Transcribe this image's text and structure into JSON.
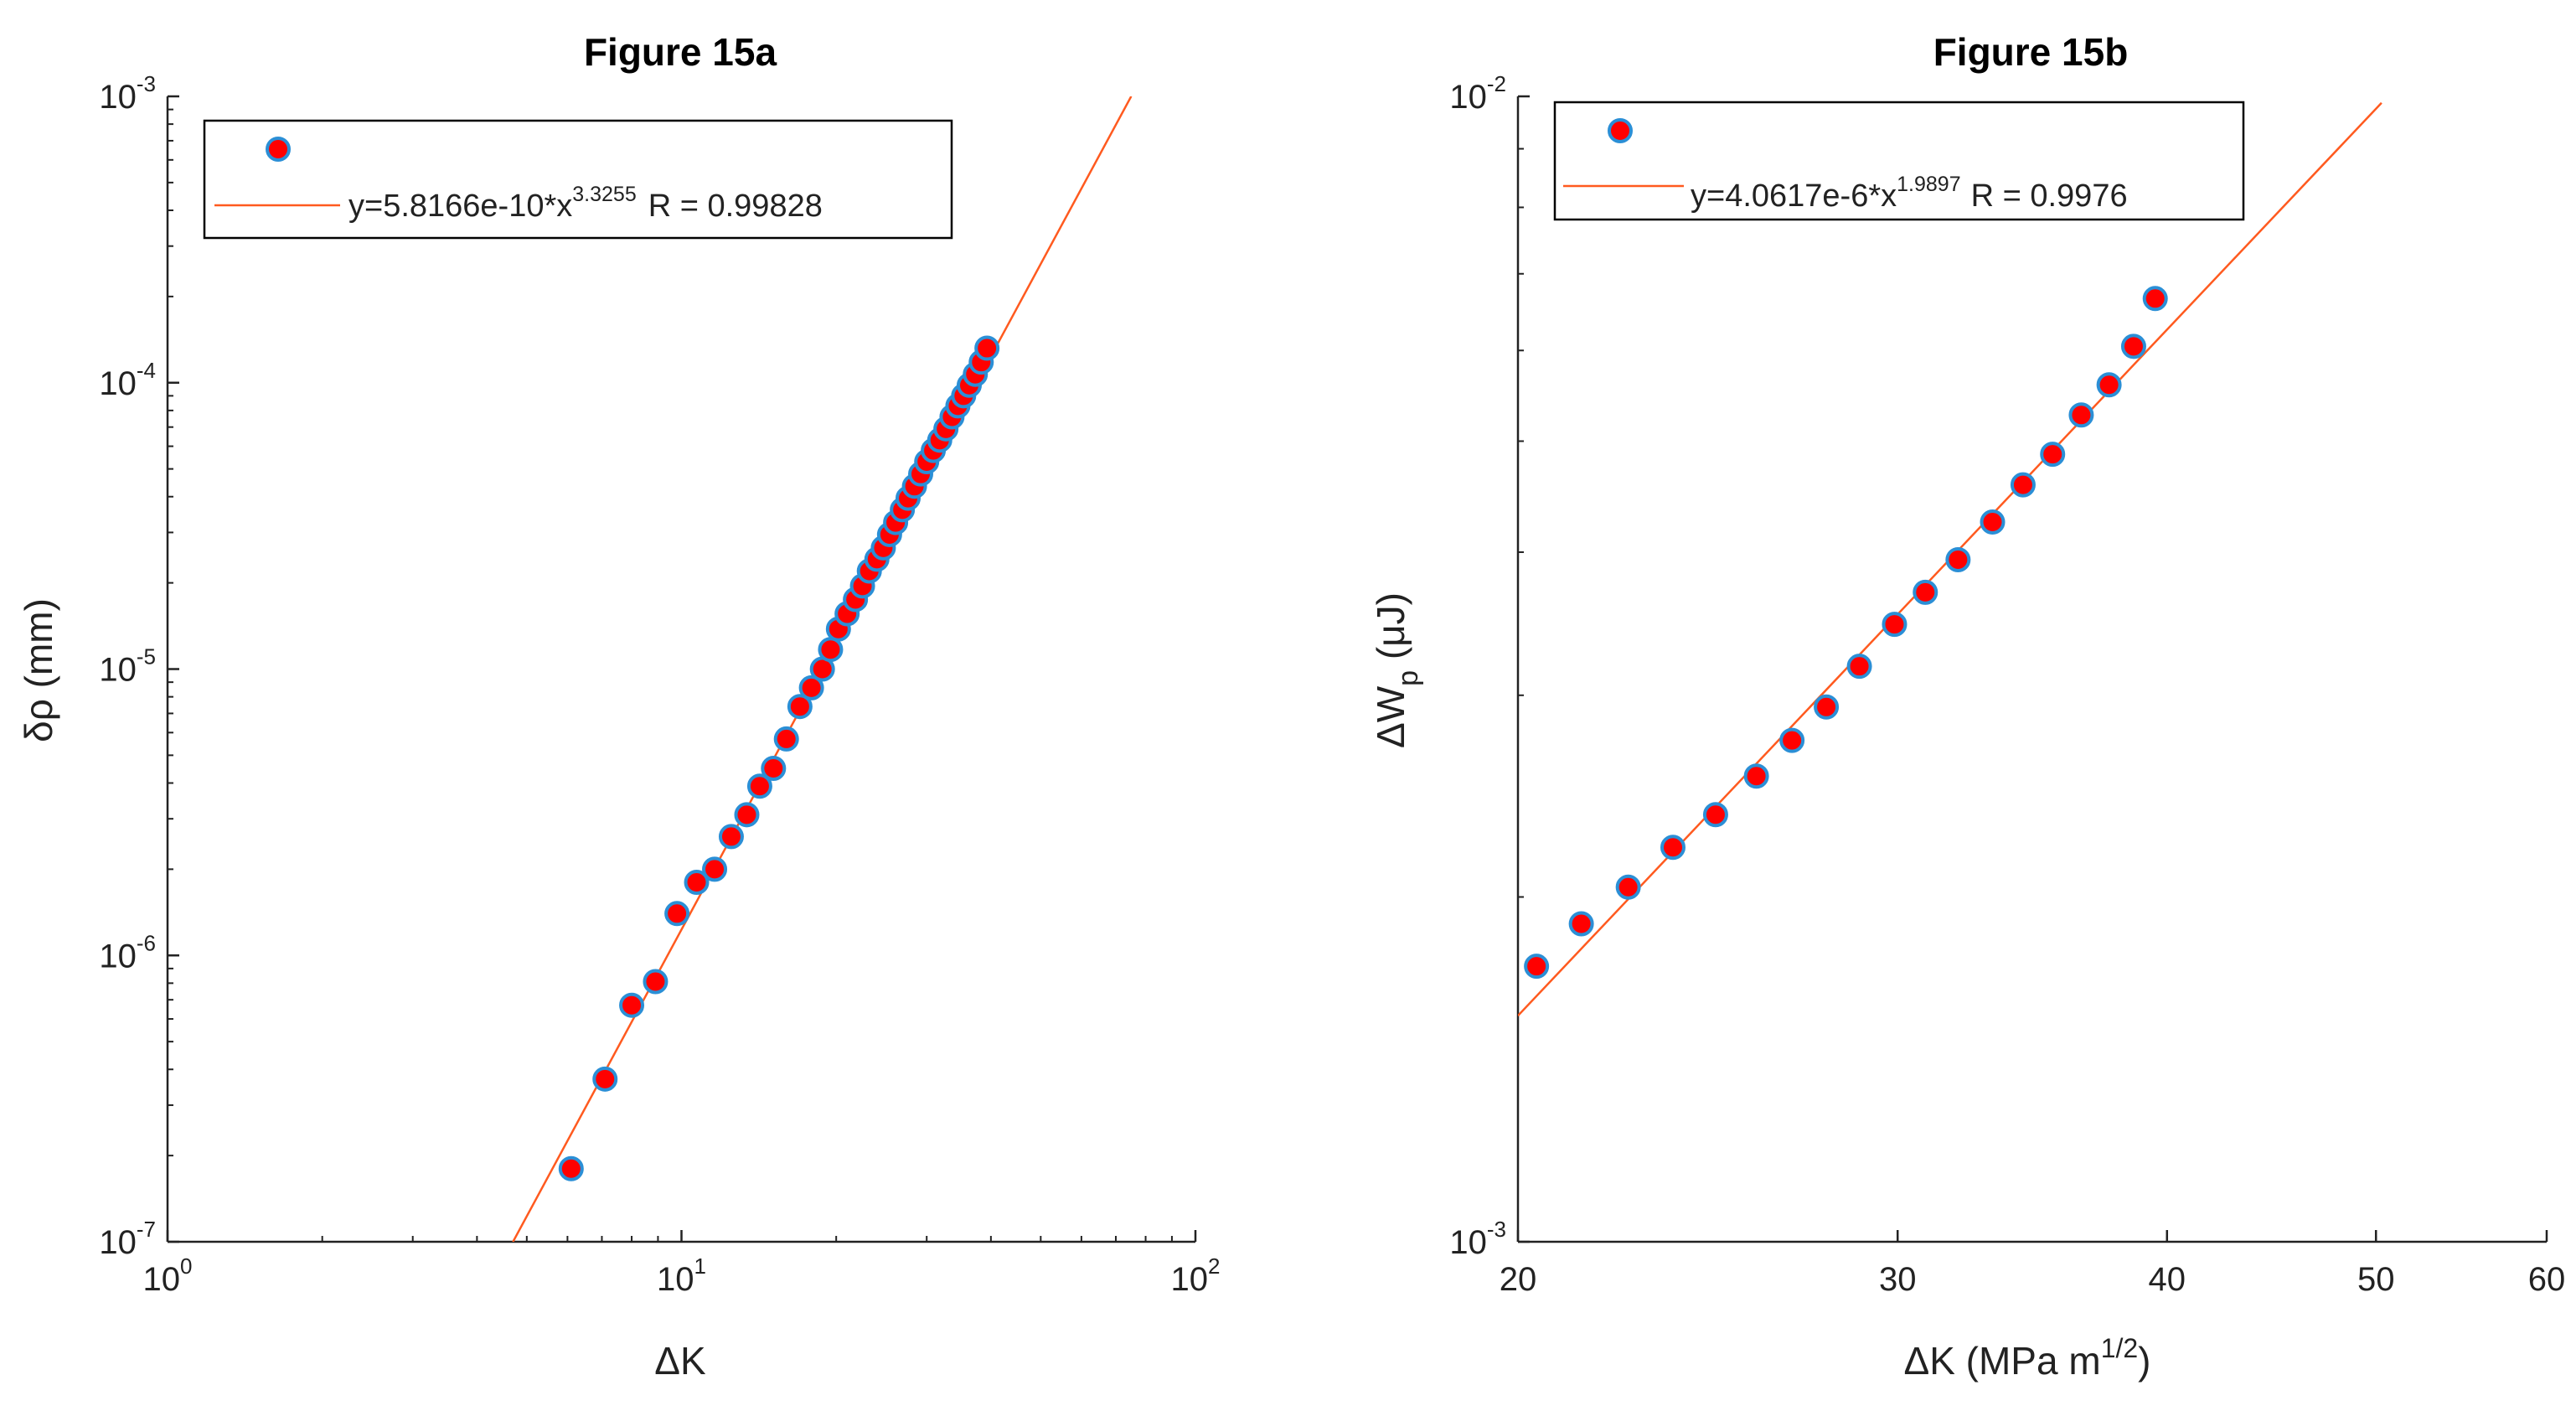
{
  "chart_data": [
    {
      "type": "scatter",
      "title": "Figure 15a",
      "xlabel": "ΔK",
      "ylabel": "δρ (mm)",
      "xscale": "log",
      "yscale": "log",
      "xlim": [
        1,
        100
      ],
      "ylim": [
        1e-07,
        0.001
      ],
      "xticks": [
        {
          "base": "10",
          "exp": "0",
          "value": 1
        },
        {
          "base": "10",
          "exp": "1",
          "value": 10
        },
        {
          "base": "10",
          "exp": "2",
          "value": 100
        }
      ],
      "yticks": [
        {
          "base": "10",
          "exp": "-7",
          "value": 1e-07
        },
        {
          "base": "10",
          "exp": "-6",
          "value": 1e-06
        },
        {
          "base": "10",
          "exp": "-5",
          "value": 1e-05
        },
        {
          "base": "10",
          "exp": "-4",
          "value": 0.0001
        },
        {
          "base": "10",
          "exp": "-3",
          "value": 0.001
        }
      ],
      "grid": false,
      "legend_position": "top-left",
      "marker_face": "#ff0000",
      "marker_edge": "#2b8fd6",
      "fit_color": "#ff5a1f",
      "fit": {
        "coef": 5.8166e-10,
        "exp": 3.3255,
        "x_range": [
          4.7,
          75
        ]
      },
      "legend": {
        "fit_prefix": "y=5.8166e-10*x",
        "fit_exp": "3.3255",
        "r_text": "R = 0.99828"
      },
      "x": [
        6.1,
        7.1,
        8.0,
        8.9,
        9.8,
        10.7,
        11.6,
        12.5,
        13.4,
        14.2,
        15.1,
        16.0,
        17.0,
        17.9,
        18.8,
        19.5,
        20.2,
        21.0,
        21.8,
        22.5,
        23.2,
        24.0,
        24.7,
        25.4,
        26.1,
        26.9,
        27.6,
        28.4,
        29.2,
        30.0,
        30.9,
        31.8,
        32.7,
        33.6,
        34.5,
        35.4,
        36.3,
        37.3,
        38.3,
        39.3
      ],
      "y": [
        1.8e-07,
        3.7e-07,
        6.7e-07,
        8.1e-07,
        1.4e-06,
        1.8e-06,
        2e-06,
        2.6e-06,
        3.1e-06,
        3.9e-06,
        4.5e-06,
        5.7e-06,
        7.4e-06,
        8.6e-06,
        1e-05,
        1.17e-05,
        1.38e-05,
        1.56e-05,
        1.75e-05,
        1.95e-05,
        2.2e-05,
        2.42e-05,
        2.65e-05,
        2.95e-05,
        3.25e-05,
        3.6e-05,
        3.95e-05,
        4.35e-05,
        4.8e-05,
        5.3e-05,
        5.8e-05,
        6.3e-05,
        6.9e-05,
        7.6e-05,
        8.3e-05,
        9e-05,
        9.8e-05,
        0.000107,
        0.000118,
        0.000132
      ]
    },
    {
      "type": "scatter",
      "title": "Figure 15b",
      "xlabel": "ΔK (MPa m",
      "xlabel_sup": "1/2",
      "xlabel_end": ")",
      "ylabel": "ΔW",
      "ylabel_sub": "p",
      "ylabel_end": " (μJ)",
      "xscale": "log",
      "yscale": "log",
      "xlim": [
        20,
        60
      ],
      "ylim": [
        0.001,
        0.01
      ],
      "xticks": [
        {
          "label": "20",
          "value": 20
        },
        {
          "label": "30",
          "value": 30
        },
        {
          "label": "40",
          "value": 40
        },
        {
          "label": "50",
          "value": 50
        },
        {
          "label": "60",
          "value": 60
        }
      ],
      "yticks": [
        {
          "base": "10",
          "exp": "-3",
          "value": 0.001
        },
        {
          "base": "10",
          "exp": "-2",
          "value": 0.01
        }
      ],
      "grid": false,
      "legend_position": "top-left",
      "marker_face": "#ff0000",
      "marker_edge": "#2b8fd6",
      "fit_color": "#ff5a1f",
      "fit": {
        "coef": 4.0617e-06,
        "exp": 1.9897,
        "x_range": [
          20,
          50.3
        ]
      },
      "legend": {
        "fit_prefix": "y=4.0617e-6*x",
        "fit_exp": "1.9897",
        "r_text": "R = 0.9976"
      },
      "x": [
        20.4,
        21.4,
        22.5,
        23.6,
        24.7,
        25.8,
        26.8,
        27.8,
        28.8,
        29.9,
        30.9,
        32.0,
        33.2,
        34.3,
        35.4,
        36.5,
        37.6,
        38.6,
        39.5
      ],
      "y": [
        0.00174,
        0.001895,
        0.00204,
        0.00221,
        0.00236,
        0.00255,
        0.00274,
        0.00293,
        0.00318,
        0.00346,
        0.00369,
        0.00394,
        0.00425,
        0.00458,
        0.00487,
        0.00527,
        0.0056,
        0.00605,
        0.00666
      ]
    }
  ]
}
